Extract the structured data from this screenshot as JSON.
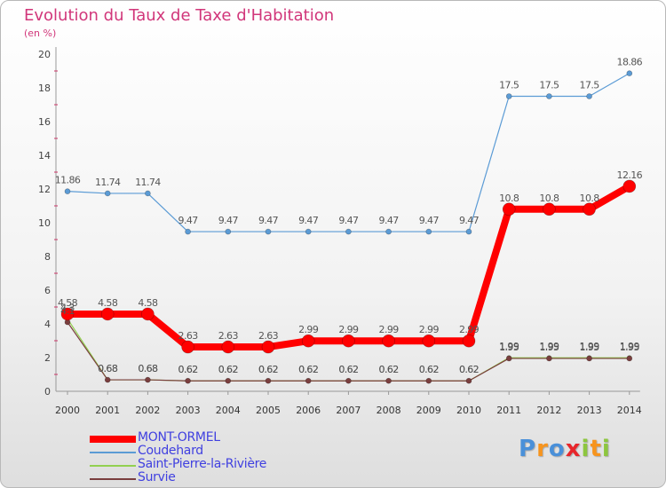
{
  "chart_data": {
    "type": "line",
    "title": "Evolution du Taux de Taxe d'Habitation",
    "ylabel": "(en %)",
    "x": [
      "2000",
      "2001",
      "2002",
      "2003",
      "2004",
      "2005",
      "2006",
      "2007",
      "2008",
      "2009",
      "2010",
      "2011",
      "2012",
      "2013",
      "2014"
    ],
    "ylim": [
      0,
      20
    ],
    "yticks": [
      0,
      2,
      4,
      6,
      8,
      10,
      12,
      14,
      16,
      18,
      20
    ],
    "grid": false,
    "legend_position": "bottom-left",
    "series": [
      {
        "name": "Coudehard",
        "color": "#5b9bd5",
        "values": [
          11.86,
          11.74,
          11.74,
          9.47,
          9.47,
          9.47,
          9.47,
          9.47,
          9.47,
          9.47,
          9.47,
          17.5,
          17.5,
          17.5,
          18.86
        ]
      },
      {
        "name": "Saint-Pierre-la-Rivière",
        "color": "#92d050",
        "values": [
          4.3,
          0.68,
          0.68,
          0.62,
          0.62,
          0.62,
          0.62,
          0.62,
          0.62,
          0.62,
          0.62,
          1.99,
          1.99,
          1.99,
          1.99
        ]
      },
      {
        "name": "Survie",
        "color": "#7a3e3e",
        "values": [
          4.1,
          0.68,
          0.68,
          0.62,
          0.62,
          0.62,
          0.62,
          0.62,
          0.62,
          0.62,
          0.62,
          1.95,
          1.95,
          1.95,
          1.95
        ]
      },
      {
        "name": "MONT-ORMEL",
        "color": "#ff0000",
        "values": [
          4.58,
          4.58,
          4.58,
          2.63,
          2.63,
          2.63,
          2.99,
          2.99,
          2.99,
          2.99,
          2.99,
          10.8,
          10.8,
          10.8,
          12.16
        ]
      }
    ],
    "legend_order": [
      "MONT-ORMEL",
      "Coudehard",
      "Saint-Pierre-la-Rivière",
      "Survie"
    ]
  },
  "logo": {
    "letters": [
      "P",
      "r",
      "o",
      "x",
      "i",
      "t",
      "i"
    ],
    "colors": [
      "#4a90d9",
      "#f7941d",
      "#4a90d9",
      "#e8262b",
      "#8dc63f",
      "#f7941d",
      "#8dc63f"
    ]
  }
}
